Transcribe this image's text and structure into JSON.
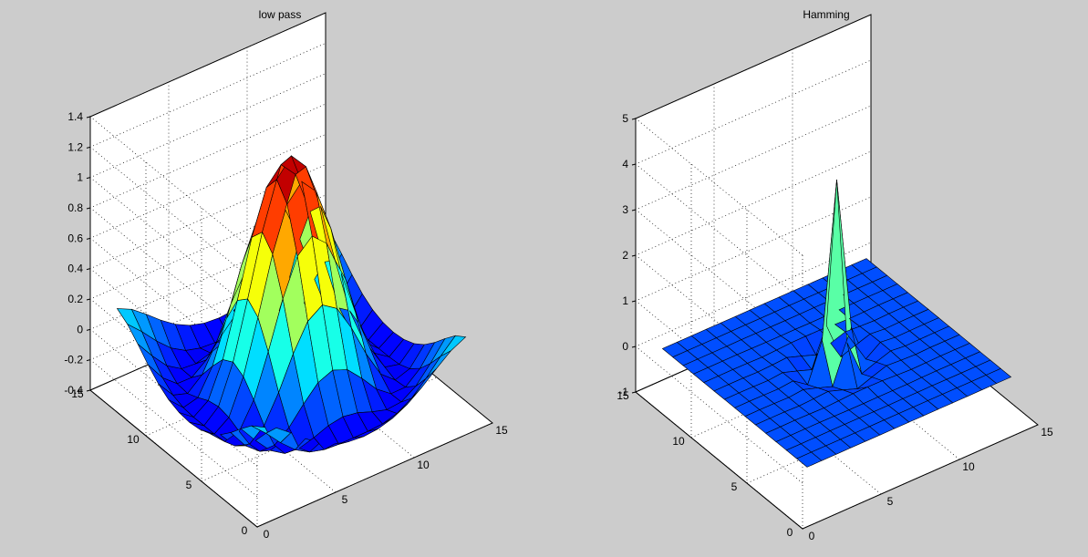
{
  "chart_data": [
    {
      "type": "surface",
      "title": "low pass",
      "xlabel": "",
      "ylabel": "",
      "zlabel": "",
      "x_ticks": [
        "0",
        "5",
        "10",
        "15"
      ],
      "y_ticks": [
        "0",
        "5",
        "10",
        "15"
      ],
      "z_ticks": [
        "-0.4",
        "-0.2",
        "0",
        "0.2",
        "0.4",
        "0.6",
        "0.8",
        "1",
        "1.2",
        "1.4"
      ],
      "xlim": [
        0,
        15
      ],
      "ylim": [
        0,
        15
      ],
      "zlim": [
        -0.4,
        1.4
      ],
      "grid": true,
      "colormap": "jet",
      "grid_size": 15,
      "surface": "sinc",
      "peak_value": 1.25,
      "peak_location": [
        7,
        7
      ],
      "min_value": -0.25
    },
    {
      "type": "surface",
      "title": "Hamming",
      "xlabel": "",
      "ylabel": "",
      "zlabel": "",
      "x_ticks": [
        "0",
        "5",
        "10",
        "15"
      ],
      "y_ticks": [
        "0",
        "5",
        "10",
        "15"
      ],
      "z_ticks": [
        "-1",
        "0",
        "1",
        "2",
        "3",
        "4",
        "5"
      ],
      "xlim": [
        0,
        15
      ],
      "ylim": [
        0,
        15
      ],
      "zlim": [
        -1,
        5
      ],
      "grid": true,
      "colormap": "jet",
      "grid_size": 15,
      "surface": "spike",
      "peak_value": 3.9,
      "peak_location": [
        7,
        7
      ],
      "min_value": -0.4
    }
  ]
}
